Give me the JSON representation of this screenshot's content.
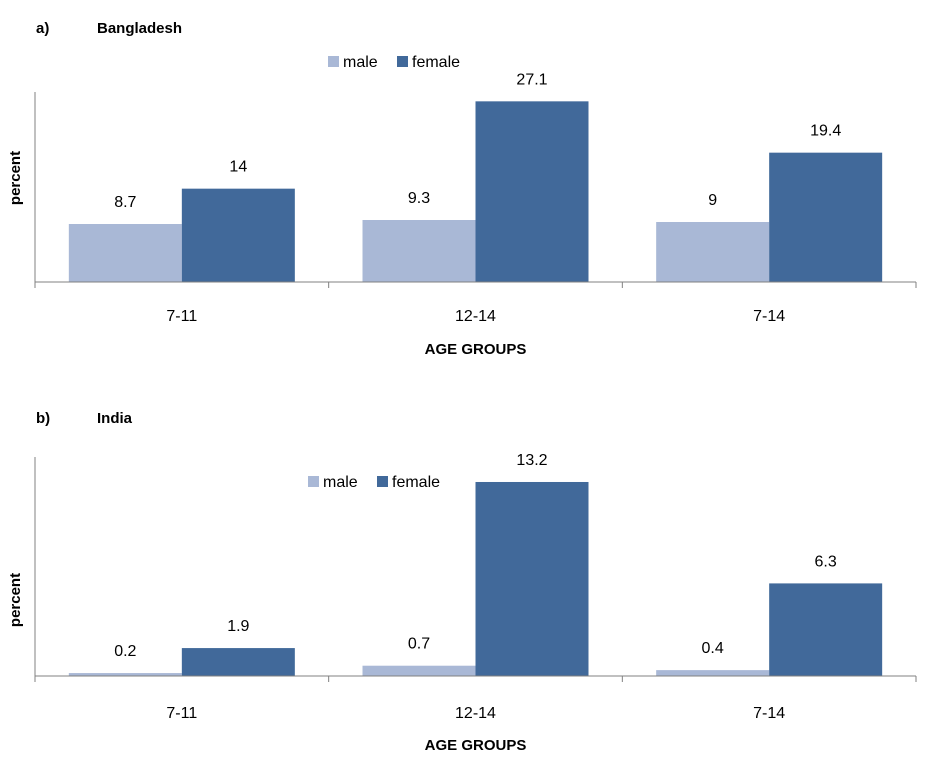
{
  "chart_data": [
    {
      "type": "bar",
      "panel_label": "a)",
      "title": "Bangladesh",
      "categories": [
        "7-11",
        "12-14",
        "7-14"
      ],
      "series": [
        {
          "name": "male",
          "values": [
            8.7,
            9.3,
            9
          ],
          "color": "#a9b8d6"
        },
        {
          "name": "female",
          "values": [
            14,
            27.1,
            19.4
          ],
          "color": "#41699a"
        }
      ],
      "value_labels": {
        "male": [
          "8.7",
          "9.3",
          "9"
        ],
        "female": [
          "14",
          "27.1",
          "19.4"
        ]
      },
      "xlabel": "AGE GROUPS",
      "ylabel": "percent",
      "ylim": [
        0,
        28.5
      ],
      "grid": false,
      "legend_position": "top-center"
    },
    {
      "type": "bar",
      "panel_label": "b)",
      "title": "India",
      "categories": [
        "7-11",
        "12-14",
        "7-14"
      ],
      "series": [
        {
          "name": "male",
          "values": [
            0.2,
            0.7,
            0.4
          ],
          "color": "#a9b8d6"
        },
        {
          "name": "female",
          "values": [
            1.9,
            13.2,
            6.3
          ],
          "color": "#41699a"
        }
      ],
      "value_labels": {
        "male": [
          "0.2",
          "0.7",
          "0.4"
        ],
        "female": [
          "1.9",
          "13.2",
          "6.3"
        ]
      },
      "xlabel": "AGE GROUPS",
      "ylabel": "percent",
      "ylim": [
        0,
        14.9
      ],
      "grid": false,
      "legend_position": "top-center"
    }
  ]
}
